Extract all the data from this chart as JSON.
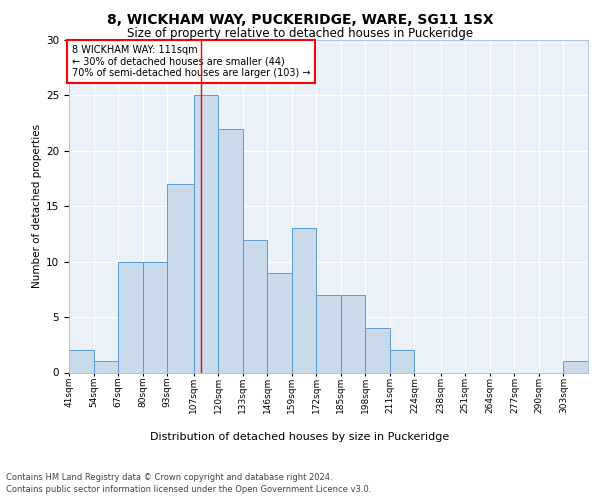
{
  "title1": "8, WICKHAM WAY, PUCKERIDGE, WARE, SG11 1SX",
  "title2": "Size of property relative to detached houses in Puckeridge",
  "xlabel": "Distribution of detached houses by size in Puckeridge",
  "ylabel": "Number of detached properties",
  "footer1": "Contains HM Land Registry data © Crown copyright and database right 2024.",
  "footer2": "Contains public sector information licensed under the Open Government Licence v3.0.",
  "annotation_line1": "8 WICKHAM WAY: 111sqm",
  "annotation_line2": "← 30% of detached houses are smaller (44)",
  "annotation_line3": "70% of semi-detached houses are larger (103) →",
  "property_size": 111,
  "bar_color": "#c9daea",
  "bar_edge_color": "#5b9bd5",
  "red_line_x": 111,
  "categories": [
    "41sqm",
    "54sqm",
    "67sqm",
    "80sqm",
    "93sqm",
    "107sqm",
    "120sqm",
    "133sqm",
    "146sqm",
    "159sqm",
    "172sqm",
    "185sqm",
    "198sqm",
    "211sqm",
    "224sqm",
    "238sqm",
    "251sqm",
    "264sqm",
    "277sqm",
    "290sqm",
    "303sqm"
  ],
  "bin_edges": [
    41,
    54,
    67,
    80,
    93,
    107,
    120,
    133,
    146,
    159,
    172,
    185,
    198,
    211,
    224,
    238,
    251,
    264,
    277,
    290,
    303,
    316
  ],
  "values": [
    2,
    1,
    10,
    10,
    17,
    25,
    22,
    12,
    9,
    13,
    7,
    7,
    4,
    2,
    0,
    0,
    0,
    0,
    0,
    0,
    1
  ],
  "ylim": [
    0,
    30
  ],
  "yticks": [
    0,
    5,
    10,
    15,
    20,
    25,
    30
  ],
  "bg_color": "#eaf1f8",
  "plot_bg_color": "#eaf1f8",
  "title1_fontsize": 10,
  "title2_fontsize": 8.5,
  "ylabel_fontsize": 7.5,
  "xlabel_fontsize": 8,
  "tick_fontsize": 6.5,
  "ytick_fontsize": 7.5,
  "annotation_fontsize": 7,
  "footer_fontsize": 6
}
